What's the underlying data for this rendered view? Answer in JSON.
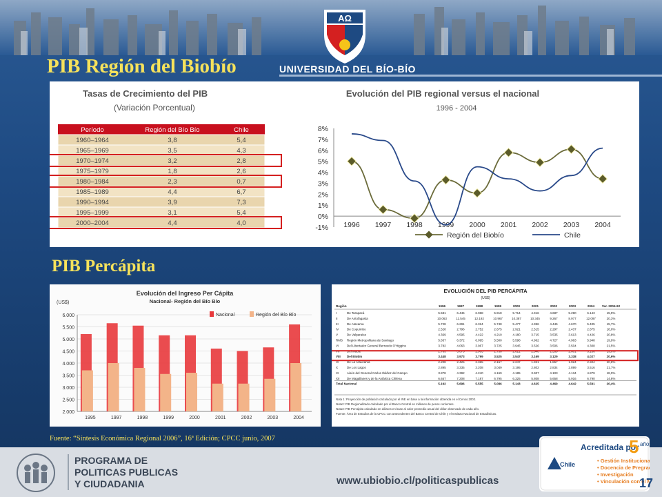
{
  "slide": {
    "title": "PIB  Región del Biobío",
    "subtitle": "PIB  Percápita",
    "university_name": "UNIVERSIDAD DEL BÍO-BÍO",
    "source": "Fuente: “Síntesis Económica Regional 2006”, 16ª Edición; CPCC   junio,   2007",
    "page_number": "17"
  },
  "footer": {
    "program_line1": "PROGRAMA DE",
    "program_line2": "POLITICAS PUBLICAS",
    "program_line3": "Y CIUDADANIA",
    "url": "www.ubiobio.cl/politicaspublicas"
  },
  "accreditation": {
    "title": "Acreditada por",
    "years": "5",
    "years_unit": "años",
    "agency": "Chile",
    "items": [
      "Gestión Institucional",
      "Docencia de Pregrado",
      "Investigación",
      "Vinculación con el Medio"
    ]
  },
  "growth_table": {
    "title": "Tasas de Crecimiento del PIB",
    "subtitle": "(Variación Porcentual)",
    "headers": [
      "Período",
      "Región del Bío Bío",
      "Chile"
    ],
    "rows": [
      [
        "1960–1964",
        "3,8",
        "5,4"
      ],
      [
        "1965–1969",
        "3,5",
        "4,3"
      ],
      [
        "1970–1974",
        "3,2",
        "2,8"
      ],
      [
        "1975–1979",
        "1,8",
        "2,6"
      ],
      [
        "1980–1984",
        "2,3",
        "0,7"
      ],
      [
        "1985–1989",
        "4,4",
        "6,7"
      ],
      [
        "1990–1994",
        "3,9",
        "7,3"
      ],
      [
        "1995–1999",
        "3,1",
        "5,4"
      ],
      [
        "2000–2004",
        "4,4",
        "4,0"
      ]
    ],
    "highlight_color": "#d42020",
    "header_color": "#c8101e"
  },
  "chart_data": [
    {
      "type": "line",
      "title": "Evolución del PIB regional versus el nacional",
      "subtitle": "1996 - 2004",
      "x": [
        "1996",
        "1997",
        "1998",
        "1999",
        "2000",
        "2001",
        "2002",
        "2003",
        "2004"
      ],
      "y_ticks": [
        "8%",
        "7%",
        "6%",
        "5%",
        "4%",
        "3%",
        "2%",
        "1%",
        "0%",
        "-1%"
      ],
      "ylim": [
        -1,
        8
      ],
      "series": [
        {
          "name": "Región del Biobío",
          "values": [
            5.0,
            0.6,
            -0.2,
            3.3,
            2.1,
            5.8,
            4.9,
            6.1,
            3.4
          ],
          "color": "#6b6b3a"
        },
        {
          "name": "Chile",
          "values": [
            7.5,
            6.9,
            3.2,
            -0.8,
            4.5,
            3.4,
            2.3,
            3.7,
            6.2
          ],
          "color": "#2a4a8a"
        }
      ],
      "legend_position": "bottom"
    },
    {
      "type": "bar",
      "title": "Evolución del Ingreso Per Cápita",
      "subtitle": "Nacional- Región del Bío Bío",
      "ylabel": "(US$)",
      "categories": [
        "1995",
        "1997",
        "1998",
        "1999",
        "2000",
        "2001",
        "2002",
        "2003",
        "2004"
      ],
      "y_ticks": [
        "6.000",
        "5.500",
        "5.000",
        "4.500",
        "4.000",
        "3.500",
        "3.000",
        "2.500",
        "2.000"
      ],
      "ylim": [
        2000,
        6000
      ],
      "series": [
        {
          "name": "Nacional",
          "values": [
            5200,
            5650,
            5550,
            5150,
            5150,
            4600,
            4500,
            4650,
            5600
          ],
          "color": "#e8393c"
        },
        {
          "name": "Región del Bío Bío",
          "values": [
            3700,
            4000,
            3800,
            3550,
            3600,
            3150,
            3150,
            3350,
            4000
          ],
          "color": "#f3b489"
        }
      ],
      "legend_position": "top-right"
    }
  ],
  "percapita_table": {
    "title": "EVOLUCIÓN DEL PIB PERCÁPITA",
    "unit": "(US$)",
    "headers": [
      "Región",
      "",
      "1996",
      "1997",
      "1998",
      "1999",
      "2000",
      "2001",
      "2002",
      "2003",
      "2004",
      "Var. 2004-92"
    ],
    "rows": [
      [
        "I",
        "De Tarapacá",
        "5.581",
        "6.445",
        "6.068",
        "5.918",
        "5.714",
        "4.916",
        "4.687",
        "5.290",
        "6.143",
        "15,9%"
      ],
      [
        "II",
        "De Antofagasta",
        "10.063",
        "11.545",
        "12.192",
        "10.967",
        "10.387",
        "10.345",
        "9.267",
        "8.977",
        "12.097",
        "20,3%"
      ],
      [
        "III",
        "De Atacama",
        "5.728",
        "6.291",
        "6.324",
        "5.748",
        "5.477",
        "4.996",
        "4.445",
        "4.670",
        "5.405",
        "15,7%"
      ],
      [
        "IV",
        "De Coquimbo",
        "2.528",
        "2.796",
        "2.752",
        "2.675",
        "2.921",
        "2.515",
        "2.297",
        "2.437",
        "2.875",
        "18,0%"
      ],
      [
        "V",
        "De Valparaíso",
        "4.369",
        "4.595",
        "4.422",
        "4.210",
        "4.180",
        "3.715",
        "3.535",
        "3.613",
        "4.426",
        "20,8%"
      ],
      [
        "RMS",
        "Región Metropolitana de Santiago",
        "5.837",
        "6.372",
        "6.095",
        "5.500",
        "5.598",
        "4.962",
        "4.727",
        "4.963",
        "5.948",
        "19,9%"
      ],
      [
        "VI",
        "Del Libertador General Bernardo O'Higgins",
        "3.782",
        "4.063",
        "3.967",
        "3.725",
        "3.945",
        "3.526",
        "3.506",
        "3.504",
        "4.308",
        "21,5%"
      ],
      [
        "VII",
        "Del Maule",
        "2.763",
        "3.078",
        "2.903",
        "2.738",
        "2.821",
        "2.640",
        "2.539",
        "2.601",
        "3.136",
        "19,0%"
      ],
      [
        "VIII",
        "Del Biobío",
        "3.448",
        "3.973",
        "3.799",
        "3.525",
        "3.547",
        "3.169",
        "3.129",
        "3.338",
        "4.027",
        "20,6%"
      ],
      [
        "IX",
        "De La Araucanía",
        "2.208",
        "2.425",
        "2.365",
        "2.167",
        "2.247",
        "1.931",
        "1.867",
        "1.924",
        "2.324",
        "20,8%"
      ],
      [
        "X",
        "De Los Lagos",
        "2.895",
        "3.335",
        "3.208",
        "3.049",
        "3.195",
        "2.802",
        "2.834",
        "2.899",
        "3.516",
        "21,7%"
      ],
      [
        "XI",
        "Aisén del General Carlos Ibáñez del Campo",
        "3.878",
        "4.392",
        "4.240",
        "4.169",
        "4.185",
        "3.907",
        "4.103",
        "4.134",
        "4.879",
        "18,0%"
      ],
      [
        "XII",
        "De Magallanes y de la Antártica Chilena",
        "6.657",
        "7.208",
        "7.187",
        "6.795",
        "6.325",
        "5.808",
        "5.658",
        "5.916",
        "6.790",
        "14,8%"
      ],
      [
        "Total Nacional",
        "",
        "5.192",
        "5.696",
        "5.555",
        "5.086",
        "5.143",
        "4.625",
        "4.469",
        "4.642",
        "5.591",
        "20,4%"
      ]
    ],
    "notes": [
      "Nota 1: Proyección de población calculado por el INE en base a la información obtenida en el Censo 2002.",
      "Nota2: PIB Regionalizado calculado por el Banco Central en millones de pesos corrientes.",
      "Nota3: PIB Percápita calculado en dólares en base al valor promedio anual del dólar observado de cada año.",
      "Fuente: Área de Estudios de la CPCC con antecedentes del Banco Central de Chile y el Instituto Nacional de Estadísticas."
    ]
  }
}
